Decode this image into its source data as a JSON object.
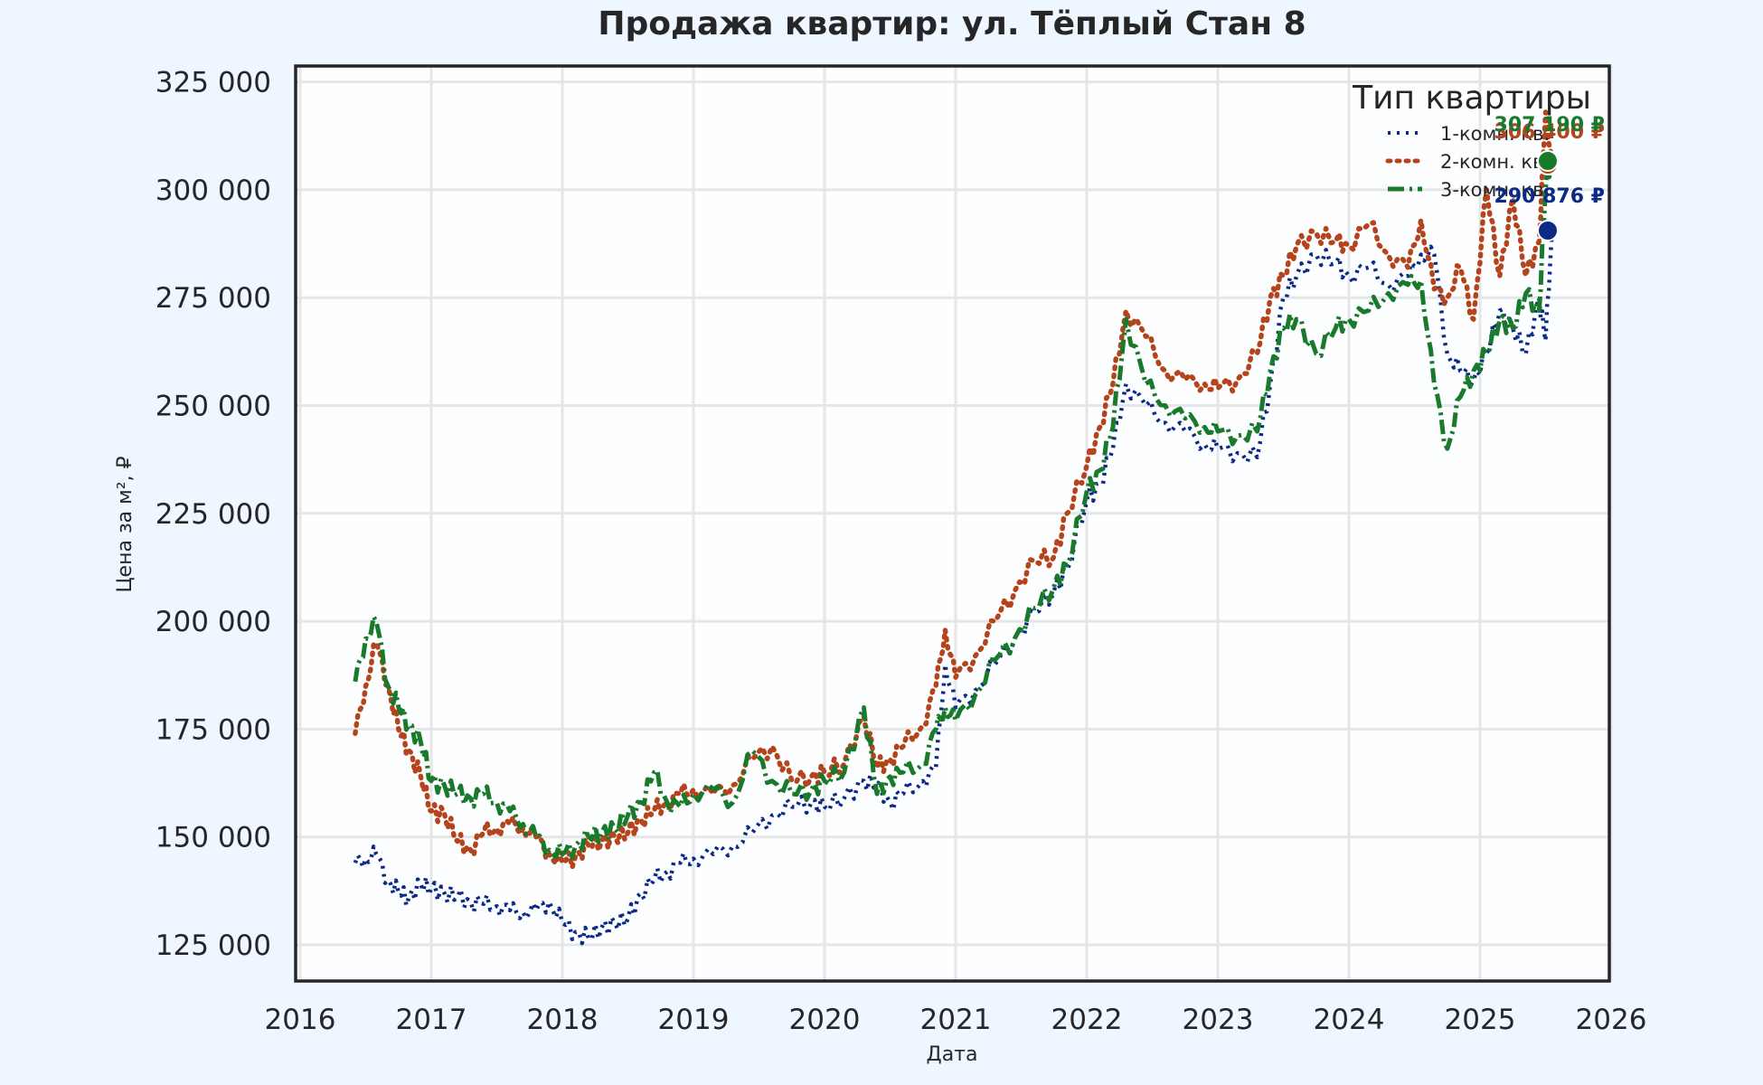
{
  "chart_data": {
    "type": "line",
    "title": "Продажа квартир: ул. Тёплый Стан 8",
    "xlabel": "Дата",
    "ylabel": "Цена за м², ₽",
    "xlim": [
      2016,
      2026
    ],
    "ylim": [
      116000,
      328000
    ],
    "x_ticks": [
      "2016",
      "2017",
      "2018",
      "2019",
      "2020",
      "2021",
      "2022",
      "2023",
      "2024",
      "2025",
      "2026"
    ],
    "y_ticks": [
      "125 000",
      "150 000",
      "175 000",
      "200 000",
      "225 000",
      "250 000",
      "275 000",
      "300 000",
      "325 000"
    ],
    "y_tick_values": [
      125000,
      150000,
      175000,
      200000,
      225000,
      250000,
      275000,
      300000,
      325000
    ],
    "grid": true,
    "legend": {
      "title": "Тип квартиры",
      "position": "upper right",
      "entries": [
        "1-комн. кв.",
        "2-комн. кв.",
        "3-комн. кв."
      ]
    },
    "series": [
      {
        "name": "1-комн. кв.",
        "color": "#0b2a85",
        "style": "dotted-triangle",
        "x": [
          2016.42,
          2016.5,
          2016.58,
          2016.67,
          2016.75,
          2016.83,
          2016.92,
          2017.0,
          2017.1,
          2017.2,
          2017.3,
          2017.4,
          2017.5,
          2017.6,
          2017.7,
          2017.8,
          2017.9,
          2018.0,
          2018.1,
          2018.2,
          2018.3,
          2018.4,
          2018.5,
          2018.6,
          2018.7,
          2018.8,
          2018.9,
          2019.0,
          2019.15,
          2019.3,
          2019.45,
          2019.6,
          2019.75,
          2019.9,
          2020.0,
          2020.15,
          2020.3,
          2020.4,
          2020.5,
          2020.6,
          2020.75,
          2020.85,
          2020.92,
          2021.0,
          2021.15,
          2021.3,
          2021.45,
          2021.6,
          2021.75,
          2021.85,
          2022.0,
          2022.1,
          2022.2,
          2022.3,
          2022.45,
          2022.6,
          2022.75,
          2022.9,
          2023.0,
          2023.15,
          2023.3,
          2023.4,
          2023.5,
          2023.6,
          2023.75,
          2023.9,
          2024.0,
          2024.15,
          2024.3,
          2024.45,
          2024.55,
          2024.65,
          2024.75,
          2024.85,
          2024.95,
          2025.05,
          2025.15,
          2025.25,
          2025.35,
          2025.45,
          2025.5,
          2025.55
        ],
        "values": [
          144000,
          145000,
          146000,
          140000,
          137000,
          136000,
          139000,
          138000,
          137000,
          136000,
          135000,
          134500,
          134000,
          133000,
          132500,
          133000,
          135000,
          130000,
          128000,
          126500,
          129000,
          130000,
          131000,
          137000,
          140000,
          142000,
          144000,
          145000,
          146000,
          148000,
          151000,
          155000,
          157000,
          158000,
          157000,
          159000,
          163000,
          162000,
          158000,
          160000,
          163000,
          166000,
          190000,
          180000,
          184000,
          190000,
          196000,
          202000,
          207000,
          212000,
          228000,
          232000,
          240000,
          255000,
          250000,
          246000,
          244000,
          241000,
          240000,
          239000,
          238000,
          255000,
          275000,
          280000,
          285000,
          283000,
          280000,
          282000,
          278000,
          280000,
          285000,
          285000,
          262000,
          258000,
          256000,
          262000,
          272000,
          268000,
          262000,
          275000,
          265000,
          290876
        ]
      },
      {
        "name": "2-комн. кв.",
        "color": "#b5441c",
        "style": "dotted-circle",
        "x": [
          2016.42,
          2016.5,
          2016.58,
          2016.67,
          2016.75,
          2016.83,
          2016.92,
          2017.0,
          2017.1,
          2017.2,
          2017.3,
          2017.4,
          2017.5,
          2017.6,
          2017.7,
          2017.8,
          2017.9,
          2018.0,
          2018.1,
          2018.2,
          2018.3,
          2018.4,
          2018.5,
          2018.6,
          2018.7,
          2018.8,
          2018.9,
          2019.0,
          2019.15,
          2019.3,
          2019.45,
          2019.6,
          2019.75,
          2019.9,
          2020.0,
          2020.15,
          2020.3,
          2020.4,
          2020.5,
          2020.6,
          2020.75,
          2020.85,
          2020.92,
          2021.0,
          2021.15,
          2021.3,
          2021.45,
          2021.6,
          2021.75,
          2021.85,
          2022.0,
          2022.1,
          2022.2,
          2022.3,
          2022.45,
          2022.6,
          2022.75,
          2022.9,
          2023.0,
          2023.15,
          2023.3,
          2023.4,
          2023.5,
          2023.6,
          2023.75,
          2023.9,
          2024.0,
          2024.15,
          2024.3,
          2024.45,
          2024.55,
          2024.65,
          2024.75,
          2024.85,
          2024.95,
          2025.05,
          2025.15,
          2025.25,
          2025.35,
          2025.45,
          2025.5,
          2025.55
        ],
        "values": [
          174000,
          185000,
          195000,
          185000,
          175000,
          170000,
          164000,
          156000,
          155500,
          149000,
          147000,
          151000,
          152000,
          153000,
          152000,
          150000,
          146000,
          144000,
          145500,
          148000,
          149000,
          150000,
          151000,
          154000,
          156000,
          158000,
          160000,
          161000,
          160000,
          162000,
          168000,
          171000,
          163000,
          164000,
          165000,
          167000,
          178000,
          166000,
          168000,
          171000,
          176000,
          185000,
          198000,
          187000,
          192000,
          200000,
          207000,
          214000,
          215000,
          225000,
          236000,
          245000,
          255000,
          272000,
          266000,
          258000,
          256000,
          255000,
          254000,
          256000,
          262000,
          275000,
          280000,
          287000,
          290000,
          288000,
          287000,
          292000,
          285000,
          282000,
          293000,
          277000,
          275000,
          282000,
          270000,
          300000,
          280000,
          298000,
          280000,
          288000,
          318000,
          306400
        ]
      },
      {
        "name": "3-комн. кв.",
        "color": "#1a7a2c",
        "style": "dashdot",
        "x": [
          2016.42,
          2016.5,
          2016.58,
          2016.67,
          2016.75,
          2016.83,
          2016.92,
          2017.0,
          2017.1,
          2017.2,
          2017.3,
          2017.4,
          2017.5,
          2017.6,
          2017.7,
          2017.8,
          2017.9,
          2018.0,
          2018.1,
          2018.2,
          2018.3,
          2018.4,
          2018.5,
          2018.6,
          2018.7,
          2018.8,
          2018.9,
          2019.0,
          2019.15,
          2019.3,
          2019.45,
          2019.6,
          2019.75,
          2019.9,
          2020.0,
          2020.15,
          2020.3,
          2020.4,
          2020.5,
          2020.6,
          2020.75,
          2020.85,
          2020.92,
          2021.0,
          2021.15,
          2021.3,
          2021.45,
          2021.6,
          2021.75,
          2021.85,
          2022.0,
          2022.1,
          2022.2,
          2022.3,
          2022.45,
          2022.6,
          2022.75,
          2022.9,
          2023.0,
          2023.15,
          2023.3,
          2023.4,
          2023.5,
          2023.6,
          2023.75,
          2023.9,
          2024.0,
          2024.15,
          2024.3,
          2024.45,
          2024.55,
          2024.65,
          2024.75,
          2024.85,
          2024.95,
          2025.05,
          2025.15,
          2025.25,
          2025.35,
          2025.45,
          2025.5,
          2025.55
        ],
        "values": [
          186000,
          196000,
          200000,
          185000,
          180000,
          176000,
          172000,
          163000,
          162000,
          160000,
          159000,
          160000,
          158000,
          156000,
          153000,
          150000,
          147000,
          146000,
          148000,
          150000,
          151000,
          152000,
          155000,
          158000,
          165000,
          158000,
          157000,
          160000,
          161000,
          158000,
          170000,
          163000,
          160000,
          161000,
          163000,
          165000,
          180000,
          160000,
          164000,
          165000,
          167000,
          175000,
          180000,
          177000,
          183000,
          191000,
          196000,
          203000,
          208000,
          213000,
          230000,
          235000,
          245000,
          270000,
          255000,
          250000,
          247000,
          245000,
          244000,
          243000,
          244000,
          258000,
          268000,
          270000,
          262000,
          268000,
          270000,
          272000,
          276000,
          278000,
          279000,
          255000,
          240000,
          252000,
          258000,
          262000,
          270000,
          268000,
          276000,
          272000,
          300000,
          307190
        ]
      }
    ],
    "annotations": [
      {
        "series": "3-комн. кв.",
        "label": "307 190 ₽",
        "value": 307190
      },
      {
        "series": "2-комн. кв.",
        "label": "306 400 ₽",
        "value": 306400
      },
      {
        "series": "1-комн. кв.",
        "label": "290 876 ₽",
        "value": 290876
      }
    ]
  },
  "colors": {
    "background": "#eef6ff",
    "plot_bg": "#fdfeff",
    "grid": "#e4e6e8",
    "axis": "#262626",
    "one_room": "#0b2a85",
    "two_room": "#b5441c",
    "three_room": "#1a7a2c"
  }
}
